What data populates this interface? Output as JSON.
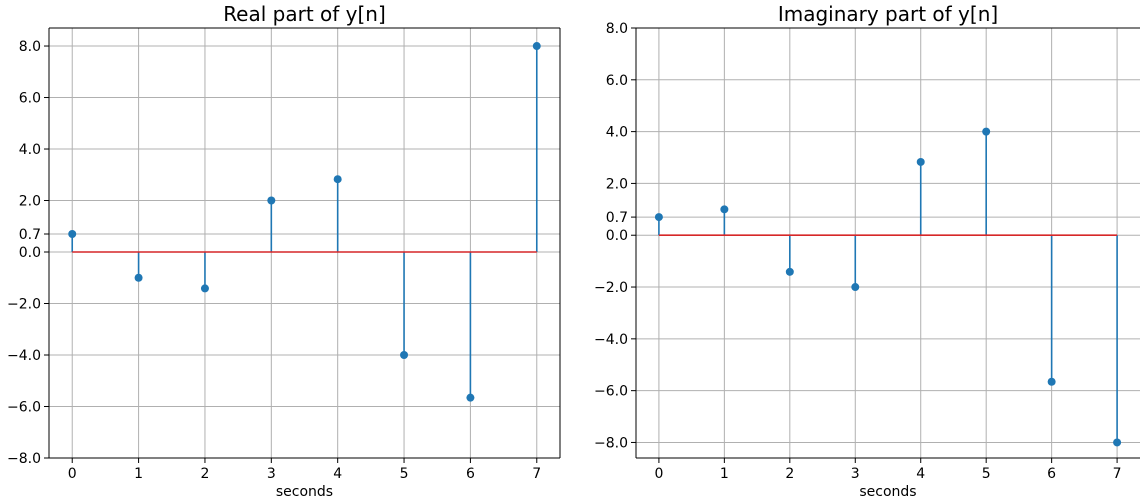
{
  "chart_data": [
    {
      "type": "stem",
      "title": "Real part of y[n]",
      "xlabel": "seconds",
      "ylabel": "",
      "x": [
        0,
        1,
        2,
        3,
        4,
        5,
        6,
        7
      ],
      "values": [
        0.7,
        -1.0,
        -1.414,
        2.0,
        2.828,
        -4.0,
        -5.657,
        8.0
      ],
      "xticks": [
        "0",
        "1",
        "2",
        "3",
        "4",
        "5",
        "6",
        "7"
      ],
      "yticks": [
        -8.0,
        -6.0,
        -4.0,
        -2.0,
        0.0,
        0.7,
        2.0,
        4.0,
        6.0,
        8.0
      ],
      "yticklabels": [
        "−8.0",
        "−6.0",
        "−4.0",
        "−2.0",
        "0.0",
        "0.7",
        "2.0",
        "4.0",
        "6.0",
        "8.0"
      ],
      "xlim": [
        -0.35,
        7.35
      ],
      "ylim": [
        -8.0,
        8.7
      ],
      "grid": true,
      "colors": {
        "stem": "#1f77b4",
        "baseline": "#d62728"
      }
    },
    {
      "type": "stem",
      "title": "Imaginary part of y[n]",
      "xlabel": "seconds",
      "ylabel": "",
      "x": [
        0,
        1,
        2,
        3,
        4,
        5,
        6,
        7
      ],
      "values": [
        0.7,
        1.0,
        -1.414,
        -2.0,
        2.828,
        4.0,
        -5.657,
        -8.0
      ],
      "xticks": [
        "0",
        "1",
        "2",
        "3",
        "4",
        "5",
        "6",
        "7"
      ],
      "yticks": [
        -8.0,
        -6.0,
        -4.0,
        -2.0,
        0.0,
        0.7,
        2.0,
        4.0,
        6.0,
        8.0
      ],
      "yticklabels": [
        "−8.0",
        "−6.0",
        "−4.0",
        "−2.0",
        "0.0",
        "0.7",
        "2.0",
        "4.0",
        "6.0",
        "8.0"
      ],
      "xlim": [
        -0.35,
        7.35
      ],
      "ylim": [
        -8.6,
        8.0
      ],
      "grid": true,
      "colors": {
        "stem": "#1f77b4",
        "baseline": "#d62728"
      }
    }
  ]
}
